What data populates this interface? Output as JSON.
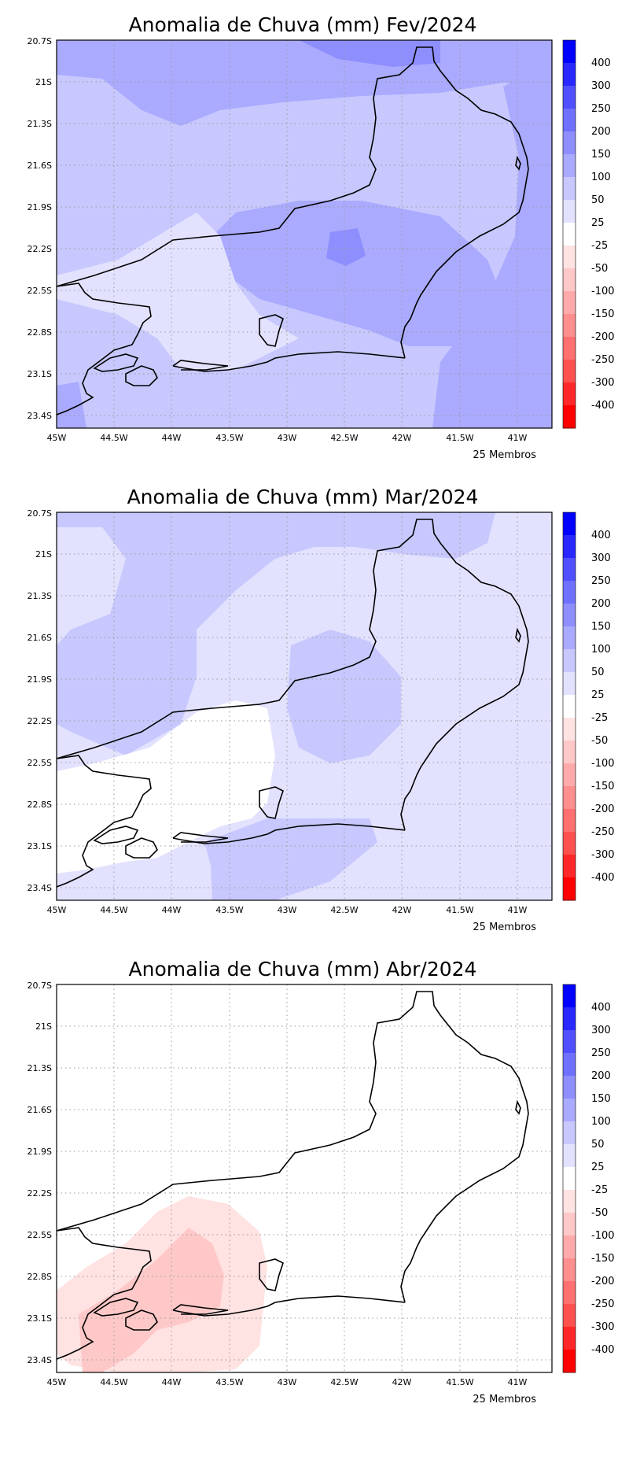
{
  "colorbar": {
    "labels": [
      "400",
      "300",
      "250",
      "200",
      "150",
      "100",
      "50",
      "25",
      "-25",
      "-50",
      "-100",
      "-150",
      "-200",
      "-250",
      "-300",
      "-400"
    ],
    "colors": [
      "#0000ff",
      "#2828ff",
      "#5050ff",
      "#7070ff",
      "#8e8eff",
      "#aaaaff",
      "#c8c8ff",
      "#e2e2ff",
      "#ffffff",
      "#ffe2e2",
      "#ffc8c8",
      "#ffaaaa",
      "#ff8e8e",
      "#ff7070",
      "#ff5050",
      "#ff2828",
      "#ff0000"
    ]
  },
  "axes": {
    "x_ticks": [
      "45W",
      "44.5W",
      "44W",
      "43.5W",
      "43W",
      "42.5W",
      "42W",
      "41.5W",
      "41W"
    ],
    "y_ticks": [
      "20.7S",
      "21S",
      "21.3S",
      "21.6S",
      "21.9S",
      "22.2S",
      "22.5S",
      "22.8S",
      "23.1S",
      "23.4S"
    ]
  },
  "panels": [
    {
      "title": "Anomalia de Chuva (mm) Fev/2024",
      "footer": "25 Membros",
      "field_classes": {
        "background": 50,
        "regions": [
          {
            "name": "northern band",
            "class": 100
          },
          {
            "name": "far north-east",
            "class": 150
          },
          {
            "name": "east coast",
            "class": 100
          },
          {
            "name": "central east",
            "class": 100
          },
          {
            "name": "central core",
            "class": 150
          },
          {
            "name": "south-west coast",
            "class": 25
          },
          {
            "name": "south-west corner",
            "class": 100
          }
        ]
      }
    },
    {
      "title": "Anomalia de Chuva (mm) Mar/2024",
      "footer": "25 Membros",
      "field_classes": {
        "background": 50,
        "regions": [
          {
            "name": "north-west",
            "class": 100
          },
          {
            "name": "central",
            "class": 100
          },
          {
            "name": "south-west",
            "class": 25
          },
          {
            "name": "southern coast",
            "class": 50
          }
        ]
      }
    },
    {
      "title": "Anomalia de Chuva (mm) Abr/2024",
      "footer": "25 Membros",
      "field_classes": {
        "background": 25,
        "regions": [
          {
            "name": "south-west",
            "class": -50
          },
          {
            "name": "south-west core",
            "class": -100
          }
        ]
      }
    }
  ]
}
